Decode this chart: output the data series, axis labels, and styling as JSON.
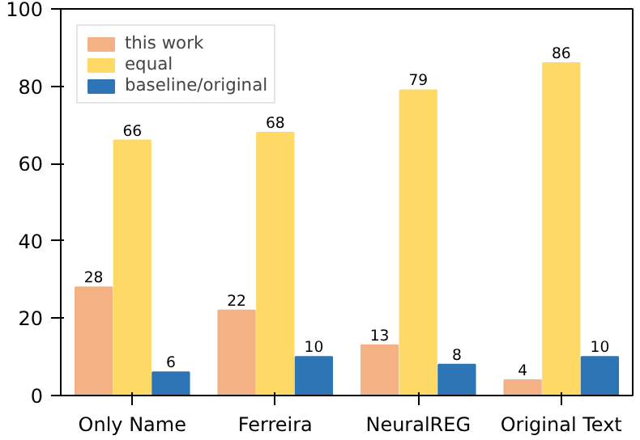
{
  "chart_data": {
    "type": "bar",
    "categories": [
      "Only Name",
      "Ferreira",
      "NeuralREG",
      "Original Text"
    ],
    "series": [
      {
        "name": "this work",
        "color": "#f4b183",
        "values": [
          28,
          22,
          13,
          4
        ]
      },
      {
        "name": "equal",
        "color": "#ffd966",
        "values": [
          66,
          68,
          79,
          86
        ]
      },
      {
        "name": "baseline/original",
        "color": "#2e75b6",
        "values": [
          6,
          10,
          8,
          10
        ]
      }
    ],
    "ylim": [
      0,
      100
    ],
    "yticks": [
      0,
      20,
      40,
      60,
      80,
      100
    ],
    "data_labels": true,
    "legend": "top left",
    "grid": false
  }
}
